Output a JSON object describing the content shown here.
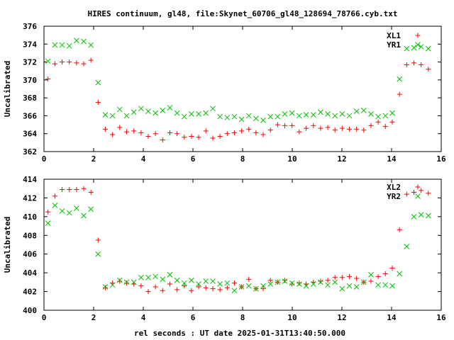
{
  "title": "HIRES continuum, gl48, file:Skynet_60706_gl48_128694_78766.cyb.txt",
  "xlabel": "rel seconds : UT date 2025-01-31T13:40:50.000",
  "colors": {
    "red": "#ff0000",
    "green": "#00c000",
    "axis": "#000000"
  },
  "chart_data": [
    {
      "type": "scatter",
      "ylabel": "Uncalibrated",
      "xlim": [
        0,
        16
      ],
      "ylim": [
        362,
        376
      ],
      "xticks": [
        0,
        2,
        4,
        6,
        8,
        10,
        12,
        14,
        16
      ],
      "yticks": [
        362,
        364,
        366,
        368,
        370,
        372,
        374,
        376
      ],
      "legend_position": "top-right",
      "series": [
        {
          "name": "XL1",
          "marker": "plus",
          "color": "#ff0000",
          "x": [
            0.16,
            0.44,
            0.73,
            1.02,
            1.31,
            1.6,
            1.89,
            2.18,
            2.47,
            2.76,
            3.05,
            3.33,
            3.62,
            3.91,
            4.2,
            4.49,
            4.78,
            5.07,
            5.36,
            5.65,
            5.94,
            6.23,
            6.52,
            6.8,
            7.09,
            7.38,
            7.67,
            7.96,
            8.25,
            8.54,
            8.83,
            9.12,
            9.41,
            9.7,
            9.99,
            10.28,
            10.56,
            10.85,
            11.14,
            11.43,
            11.72,
            12.01,
            12.3,
            12.59,
            12.88,
            13.17,
            13.46,
            13.75,
            14.03,
            14.32,
            14.61,
            14.9,
            15.19,
            15.48
          ],
          "y": [
            370.1,
            371.8,
            372.0,
            372.0,
            371.9,
            371.8,
            372.2,
            367.5,
            364.5,
            363.9,
            364.7,
            364.2,
            364.3,
            364.1,
            363.7,
            364.0,
            363.3,
            364.1,
            364.0,
            363.6,
            363.7,
            363.6,
            364.3,
            363.5,
            363.7,
            364.0,
            364.1,
            364.3,
            364.5,
            364.1,
            363.9,
            364.4,
            365.0,
            364.9,
            364.9,
            364.2,
            364.6,
            364.9,
            364.6,
            364.7,
            364.4,
            364.6,
            364.5,
            364.5,
            364.4,
            364.9,
            365.3,
            364.8,
            365.3,
            368.4,
            371.7,
            371.9,
            371.7,
            371.2
          ]
        },
        {
          "name": "YR1",
          "marker": "cross",
          "color": "#00c000",
          "x": [
            0.16,
            0.44,
            0.73,
            1.02,
            1.31,
            1.6,
            1.89,
            2.18,
            2.47,
            2.76,
            3.05,
            3.33,
            3.62,
            3.91,
            4.2,
            4.49,
            4.78,
            5.07,
            5.36,
            5.65,
            5.94,
            6.23,
            6.52,
            6.8,
            7.09,
            7.38,
            7.67,
            7.96,
            8.25,
            8.54,
            8.83,
            9.12,
            9.41,
            9.7,
            9.99,
            10.28,
            10.56,
            10.85,
            11.14,
            11.43,
            11.72,
            12.01,
            12.3,
            12.59,
            12.88,
            13.17,
            13.46,
            13.75,
            14.03,
            14.32,
            14.61,
            14.9,
            15.19,
            15.48
          ],
          "y": [
            372.1,
            373.9,
            373.9,
            373.8,
            374.4,
            374.3,
            373.9,
            369.7,
            366.1,
            366.0,
            366.7,
            366.0,
            366.4,
            366.8,
            366.5,
            366.3,
            366.6,
            366.9,
            366.3,
            365.9,
            366.2,
            366.2,
            366.3,
            366.8,
            365.9,
            365.8,
            365.9,
            365.6,
            366.0,
            365.7,
            365.5,
            365.9,
            365.9,
            366.2,
            366.3,
            366.0,
            366.1,
            366.1,
            366.4,
            366.2,
            366.0,
            366.2,
            366.0,
            366.5,
            366.6,
            366.2,
            365.9,
            366.0,
            366.3,
            370.1,
            373.5,
            373.6,
            373.7,
            373.5
          ]
        }
      ]
    },
    {
      "type": "scatter",
      "ylabel": "Uncalibrated",
      "xlim": [
        0,
        16
      ],
      "ylim": [
        400,
        414
      ],
      "xticks": [
        0,
        2,
        4,
        6,
        8,
        10,
        12,
        14,
        16
      ],
      "yticks": [
        400,
        402,
        404,
        406,
        408,
        410,
        412,
        414
      ],
      "legend_position": "top-right",
      "series": [
        {
          "name": "XL2",
          "marker": "plus",
          "color": "#ff0000",
          "x": [
            0.16,
            0.44,
            0.73,
            1.02,
            1.31,
            1.6,
            1.89,
            2.18,
            2.47,
            2.76,
            3.05,
            3.33,
            3.62,
            3.91,
            4.2,
            4.49,
            4.78,
            5.07,
            5.36,
            5.65,
            5.94,
            6.23,
            6.52,
            6.8,
            7.09,
            7.38,
            7.67,
            7.96,
            8.25,
            8.54,
            8.83,
            9.12,
            9.41,
            9.7,
            9.99,
            10.28,
            10.56,
            10.85,
            11.14,
            11.43,
            11.72,
            12.01,
            12.3,
            12.59,
            12.88,
            13.17,
            13.46,
            13.75,
            14.03,
            14.32,
            14.61,
            14.9,
            15.19,
            15.48
          ],
          "y": [
            410.5,
            412.2,
            412.9,
            412.9,
            412.9,
            413.0,
            412.6,
            407.5,
            402.4,
            402.9,
            403.1,
            402.9,
            402.8,
            402.6,
            402.0,
            402.5,
            402.1,
            402.8,
            402.2,
            402.6,
            402.1,
            402.5,
            402.4,
            402.3,
            402.2,
            402.4,
            402.9,
            402.5,
            403.3,
            402.3,
            402.3,
            403.2,
            403.0,
            403.2,
            402.8,
            402.9,
            402.8,
            403.0,
            403.1,
            403.2,
            403.5,
            403.5,
            403.6,
            403.4,
            403.0,
            403.1,
            403.6,
            403.9,
            404.5,
            408.6,
            412.4,
            412.6,
            412.8,
            412.5
          ]
        },
        {
          "name": "YR2",
          "marker": "cross",
          "color": "#00c000",
          "x": [
            0.16,
            0.44,
            0.73,
            1.02,
            1.31,
            1.6,
            1.89,
            2.18,
            2.47,
            2.76,
            3.05,
            3.33,
            3.62,
            3.91,
            4.2,
            4.49,
            4.78,
            5.07,
            5.36,
            5.65,
            5.94,
            6.23,
            6.52,
            6.8,
            7.09,
            7.38,
            7.67,
            7.96,
            8.25,
            8.54,
            8.83,
            9.12,
            9.41,
            9.7,
            9.99,
            10.28,
            10.56,
            10.85,
            11.14,
            11.43,
            11.72,
            12.01,
            12.3,
            12.59,
            12.88,
            13.17,
            13.46,
            13.75,
            14.03,
            14.32,
            14.61,
            14.9,
            15.19,
            15.48
          ],
          "y": [
            409.3,
            411.2,
            410.6,
            410.4,
            410.9,
            410.1,
            410.8,
            406.0,
            402.5,
            402.7,
            403.2,
            403.0,
            403.0,
            403.5,
            403.5,
            403.6,
            403.3,
            403.8,
            403.2,
            402.9,
            403.2,
            402.8,
            403.1,
            403.1,
            402.8,
            402.9,
            402.1,
            402.5,
            402.6,
            402.3,
            402.6,
            402.8,
            403.0,
            403.1,
            402.9,
            402.8,
            402.6,
            402.8,
            403.0,
            402.7,
            403.0,
            402.3,
            402.6,
            402.5,
            403.0,
            403.8,
            402.7,
            402.7,
            402.6,
            403.9,
            406.8,
            410.0,
            410.2,
            410.1
          ]
        }
      ]
    }
  ]
}
